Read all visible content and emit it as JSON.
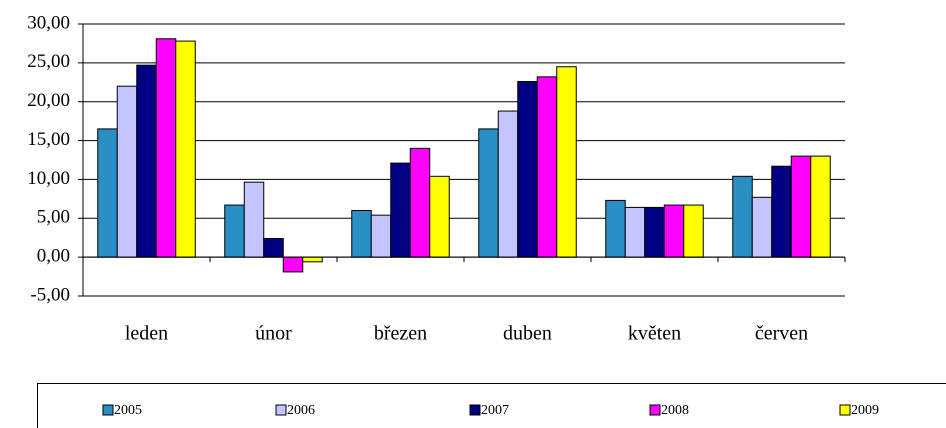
{
  "chart_data": {
    "type": "bar",
    "categories": [
      "leden",
      "únor",
      "březen",
      "duben",
      "květen",
      "červen"
    ],
    "series": [
      {
        "name": "2005",
        "color": "#2a8fc4",
        "values": [
          16.5,
          6.7,
          6.0,
          16.5,
          7.3,
          10.4
        ]
      },
      {
        "name": "2006",
        "color": "#c4c4ff",
        "values": [
          22.0,
          9.65,
          5.4,
          18.8,
          6.4,
          7.7
        ]
      },
      {
        "name": "2007",
        "color": "#000080",
        "values": [
          24.7,
          2.4,
          12.1,
          22.6,
          6.4,
          11.7
        ]
      },
      {
        "name": "2008",
        "color": "#ff00ff",
        "values": [
          28.1,
          -1.9,
          14.0,
          23.2,
          6.7,
          13.0
        ]
      },
      {
        "name": "2009",
        "color": "#ffff00",
        "values": [
          27.8,
          -0.6,
          10.4,
          24.5,
          6.7,
          13.0
        ]
      }
    ],
    "ylim": [
      -5,
      30
    ],
    "yticks": [
      {
        "value": -5,
        "label": "-5,00"
      },
      {
        "value": 0,
        "label": "0,00"
      },
      {
        "value": 5,
        "label": "5,00"
      },
      {
        "value": 10,
        "label": "10,00"
      },
      {
        "value": 15,
        "label": "15,00"
      },
      {
        "value": 20,
        "label": "20,00"
      },
      {
        "value": 25,
        "label": "25,00"
      },
      {
        "value": 30,
        "label": "30,00"
      }
    ],
    "grid": true,
    "legend": "bottom"
  }
}
